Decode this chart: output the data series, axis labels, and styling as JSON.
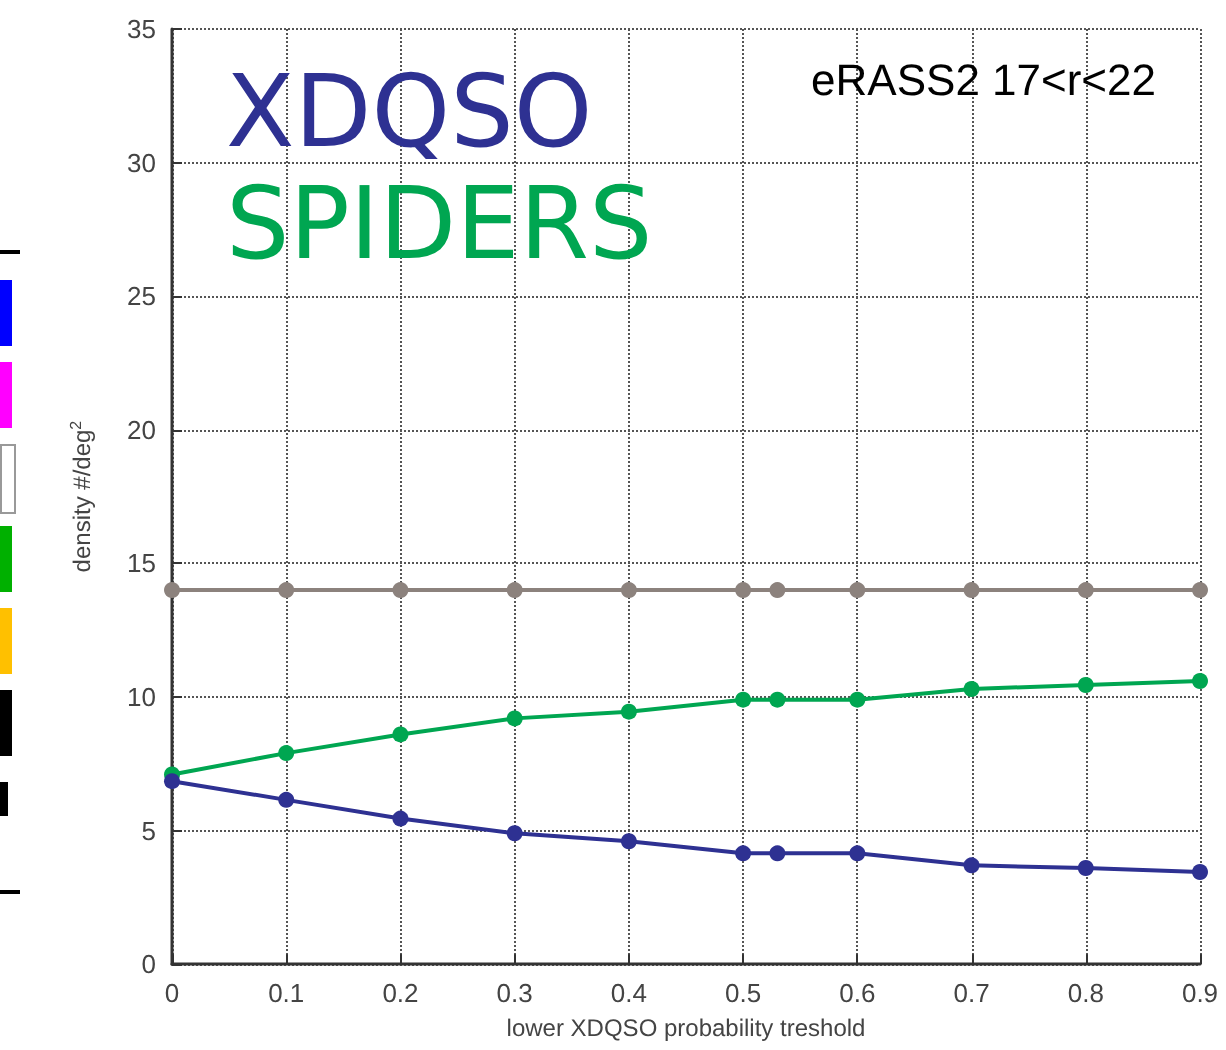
{
  "chart_data": {
    "type": "line",
    "title": "eRASS2 17<r<22",
    "xlabel": "lower XDQSO probability treshold",
    "ylabel": "density #/deg$^{2}$",
    "x": [
      0,
      0.1,
      0.2,
      0.3,
      0.4,
      0.5,
      0.53,
      0.6,
      0.7,
      0.8,
      0.9
    ],
    "series": [
      {
        "color": "#8c827d",
        "values": [
          14,
          14,
          14,
          14,
          14,
          14,
          14,
          14,
          14,
          14,
          14
        ]
      },
      {
        "name": "SPIDERS",
        "color": "#00a651",
        "values": [
          7.1,
          7.9,
          8.6,
          9.2,
          9.45,
          9.9,
          9.9,
          9.9,
          10.3,
          10.45,
          10.6
        ]
      },
      {
        "name": "XDQSO",
        "color": "#2e3192",
        "values": [
          6.85,
          6.15,
          5.45,
          4.9,
          4.6,
          4.15,
          4.15,
          4.15,
          3.7,
          3.6,
          3.45
        ]
      }
    ],
    "xlim": [
      0,
      0.9
    ],
    "xticks": [
      0,
      0.1,
      0.2,
      0.3,
      0.4,
      0.5,
      0.6,
      0.7,
      0.8,
      0.9
    ],
    "ylim": [
      0,
      35
    ],
    "yticks": [
      0,
      5,
      10,
      15,
      20,
      25,
      30,
      35
    ],
    "grid": true,
    "legend": "top left",
    "marker": "circle",
    "line_style": "solid"
  }
}
